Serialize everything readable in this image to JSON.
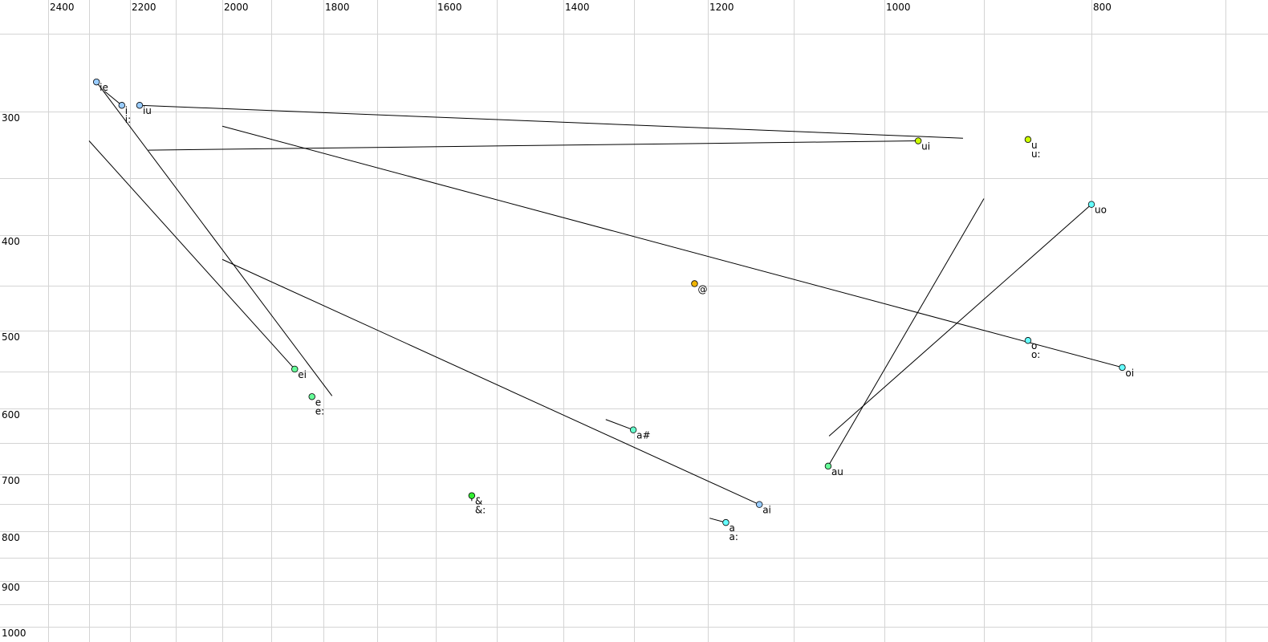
{
  "chart_data": {
    "type": "scatter",
    "title": "",
    "xlabel": "",
    "ylabel": "",
    "x_axis": {
      "position": "top",
      "reversed": true,
      "scale": "nonlinear (auditory)",
      "ticks": [
        2400,
        2200,
        2000,
        1800,
        1600,
        1400,
        1200,
        1000,
        800
      ],
      "minor_grid": [
        2300,
        2100,
        1900,
        1700,
        1500,
        1300,
        1100,
        900,
        700
      ]
    },
    "y_axis": {
      "position": "left",
      "reversed": false,
      "scale": "nonlinear (auditory)",
      "ticks": [
        300,
        400,
        500,
        600,
        700,
        800,
        900,
        1000
      ],
      "minor_grid": [
        250,
        350,
        450,
        550,
        650,
        750,
        850,
        950
      ]
    },
    "grid": true,
    "points": [
      {
        "label": "ie",
        "x": 2282,
        "y": 281,
        "color": "#99ccff"
      },
      {
        "label": "i",
        "label2": "i:",
        "x": 2220,
        "y": 296,
        "color": "#99ccff"
      },
      {
        "label": "iu",
        "x": 2179,
        "y": 296,
        "color": "#99ccff"
      },
      {
        "label": "ui",
        "x": 966,
        "y": 322,
        "color": "#ccff00"
      },
      {
        "label": "u",
        "label2": "u:",
        "x": 859,
        "y": 321,
        "color": "#ccff00"
      },
      {
        "label": "uo",
        "x": 800,
        "y": 373,
        "color": "#66ffff"
      },
      {
        "label": "@",
        "x": 1218,
        "y": 448,
        "color": "#f0b400"
      },
      {
        "label": "o",
        "label2": "o:",
        "x": 859,
        "y": 512,
        "color": "#66ffff"
      },
      {
        "label": "oi",
        "x": 777,
        "y": 545,
        "color": "#66ffff"
      },
      {
        "label": "ei",
        "x": 1855,
        "y": 547,
        "color": "#66ff99"
      },
      {
        "label": "e",
        "label2": "e:",
        "x": 1822,
        "y": 584,
        "color": "#66ff99"
      },
      {
        "label": "a#",
        "x": 1301,
        "y": 631,
        "color": "#66ffcc"
      },
      {
        "label": "au",
        "x": 1062,
        "y": 687,
        "color": "#66ff99"
      },
      {
        "label": "&",
        "label2": "&:",
        "x": 1541,
        "y": 736,
        "color": "#33ee33"
      },
      {
        "label": "ai",
        "x": 1140,
        "y": 751,
        "color": "#99ccff"
      },
      {
        "label": "a",
        "label2": "a:",
        "x": 1179,
        "y": 784,
        "color": "#66ffff"
      }
    ],
    "trajectories": [
      {
        "vowel": "ie",
        "from": [
          1784,
          583
        ],
        "to": [
          2282,
          281
        ]
      },
      {
        "vowel": "i",
        "from": [
          2262,
          287
        ],
        "to": [
          2220,
          296
        ]
      },
      {
        "vowel": "iu",
        "from": [
          921,
          320
        ],
        "to": [
          2179,
          296
        ]
      },
      {
        "vowel": "ui",
        "from": [
          2160,
          329
        ],
        "to": [
          966,
          322
        ]
      },
      {
        "vowel": "oi",
        "from": [
          2000,
          311
        ],
        "to": [
          777,
          545
        ]
      },
      {
        "vowel": "ei",
        "from": [
          2300,
          322
        ],
        "to": [
          1855,
          547
        ]
      },
      {
        "vowel": "ai",
        "from": [
          2000,
          424
        ],
        "to": [
          1140,
          751
        ]
      },
      {
        "vowel": "uo",
        "from": [
          1061,
          640
        ],
        "to": [
          800,
          373
        ]
      },
      {
        "vowel": "au",
        "from": [
          900,
          368
        ],
        "to": [
          1062,
          687
        ]
      },
      {
        "vowel": "a#",
        "from": [
          1340,
          616
        ],
        "to": [
          1301,
          631
        ]
      },
      {
        "vowel": "a",
        "from": [
          1198,
          776
        ],
        "to": [
          1179,
          784
        ]
      },
      {
        "vowel": "&",
        "from": [
          1541,
          745
        ],
        "to": [
          1541,
          736
        ]
      }
    ]
  }
}
